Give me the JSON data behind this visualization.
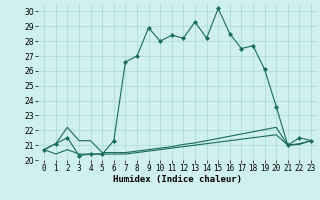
{
  "xlabel": "Humidex (Indice chaleur)",
  "bg_color": "#cff0ee",
  "grid_color": "#a8d8d5",
  "line_color": "#1a6b5a",
  "xlim": [
    -0.5,
    23.5
  ],
  "ylim": [
    20,
    30.5
  ],
  "yticks": [
    20,
    21,
    22,
    23,
    24,
    25,
    26,
    27,
    28,
    29,
    30
  ],
  "xticks": [
    0,
    1,
    2,
    3,
    4,
    5,
    6,
    7,
    8,
    9,
    10,
    11,
    12,
    13,
    14,
    15,
    16,
    17,
    18,
    19,
    20,
    21,
    22,
    23
  ],
  "xtick_labels": [
    "0",
    "1",
    "2",
    "3",
    "4",
    "5",
    "6",
    "7",
    "8",
    "9",
    "10",
    "11",
    "12",
    "13",
    "14",
    "15",
    "16",
    "17",
    "18",
    "19",
    "20",
    "21",
    "22",
    "23"
  ],
  "series1_y": [
    20.7,
    21.1,
    21.5,
    20.3,
    20.4,
    20.4,
    21.3,
    26.6,
    27.0,
    28.9,
    28.0,
    28.4,
    28.2,
    29.3,
    28.2,
    30.2,
    28.5,
    27.5,
    27.7,
    26.1,
    23.6,
    21.0,
    21.5,
    21.3
  ],
  "series2_y": [
    20.7,
    21.1,
    22.2,
    21.3,
    21.3,
    20.5,
    20.5,
    20.5,
    20.6,
    20.7,
    20.8,
    20.9,
    21.05,
    21.15,
    21.3,
    21.45,
    21.6,
    21.75,
    21.9,
    22.05,
    22.2,
    21.0,
    21.1,
    21.3
  ],
  "series3_y": [
    20.7,
    20.4,
    20.7,
    20.4,
    20.4,
    20.4,
    20.4,
    20.4,
    20.5,
    20.6,
    20.7,
    20.8,
    20.9,
    21.0,
    21.1,
    21.2,
    21.3,
    21.4,
    21.5,
    21.6,
    21.7,
    21.0,
    21.05,
    21.3
  ],
  "markersize": 2.2,
  "linewidth": 0.8,
  "tick_fontsize": 5.5,
  "xlabel_fontsize": 6.5
}
